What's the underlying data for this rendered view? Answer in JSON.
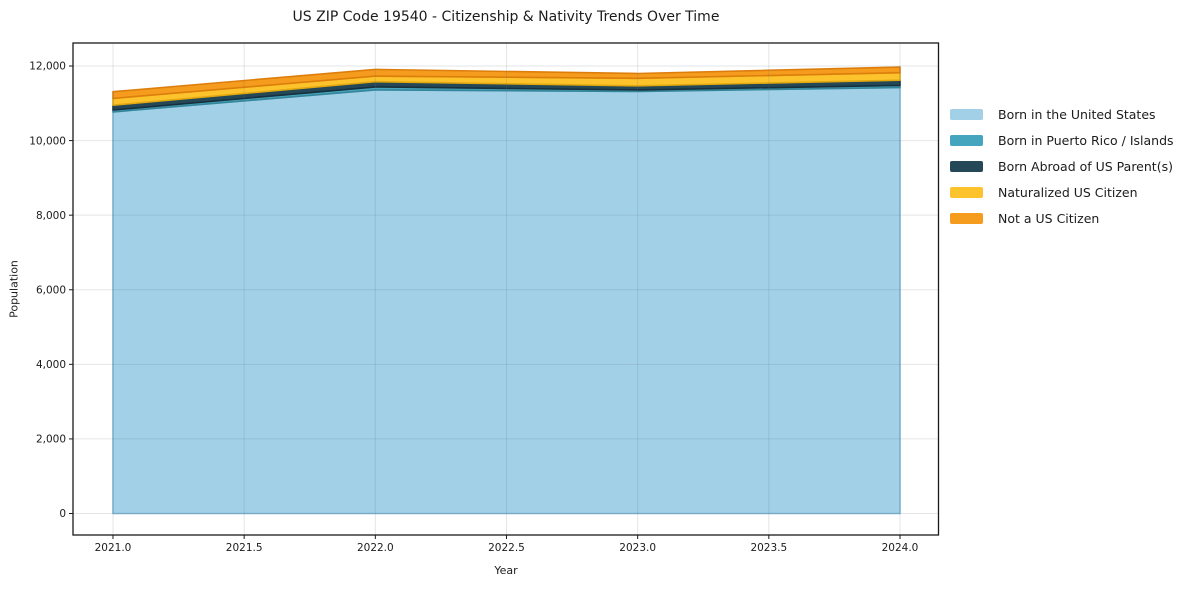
{
  "chart_data": {
    "type": "area",
    "stacked": true,
    "title": "US ZIP Code 19540 - Citizenship & Nativity Trends Over Time",
    "xlabel": "Year",
    "ylabel": "Population",
    "x": [
      2021,
      2022,
      2023,
      2024
    ],
    "series": [
      {
        "name": "Born in the United States",
        "color": "#A1D0E7",
        "edge": "#7FB8D6",
        "values": [
          10770,
          11360,
          11320,
          11420
        ]
      },
      {
        "name": "Born in Puerto Rico / Islands",
        "color": "#46A5BE",
        "edge": "#35869B",
        "values": [
          50,
          80,
          40,
          60
        ]
      },
      {
        "name": "Born Abroad of US Parent(s)",
        "color": "#254858",
        "edge": "#16303C",
        "values": [
          130,
          140,
          110,
          140
        ]
      },
      {
        "name": "Naturalized US Citizen",
        "color": "#FCC32D",
        "edge": "#E2A90F",
        "values": [
          180,
          150,
          200,
          200
        ]
      },
      {
        "name": "Not a US Citizen",
        "color": "#F59C1E",
        "edge": "#DD7E0C",
        "values": [
          180,
          180,
          130,
          150
        ]
      }
    ],
    "x_ticks": {
      "values": [
        2021.0,
        2021.5,
        2022.0,
        2022.5,
        2023.0,
        2023.5,
        2024.0
      ],
      "labels": [
        "2021.0",
        "2021.5",
        "2022.0",
        "2022.5",
        "2023.0",
        "2023.5",
        "2024.0"
      ]
    },
    "y_ticks": {
      "values": [
        0,
        2000,
        4000,
        6000,
        8000,
        10000,
        12000
      ],
      "labels": [
        "0",
        "2,000",
        "4,000",
        "6,000",
        "8,000",
        "10,000",
        "12,000"
      ]
    },
    "ylim": [
      0,
      12000
    ],
    "grid": true,
    "legend_position": "right-outside",
    "frame_color": "#1a1a1a",
    "grid_color": "rgba(100,110,120,0.18)",
    "tick_label_color": "#1c1c1c"
  }
}
